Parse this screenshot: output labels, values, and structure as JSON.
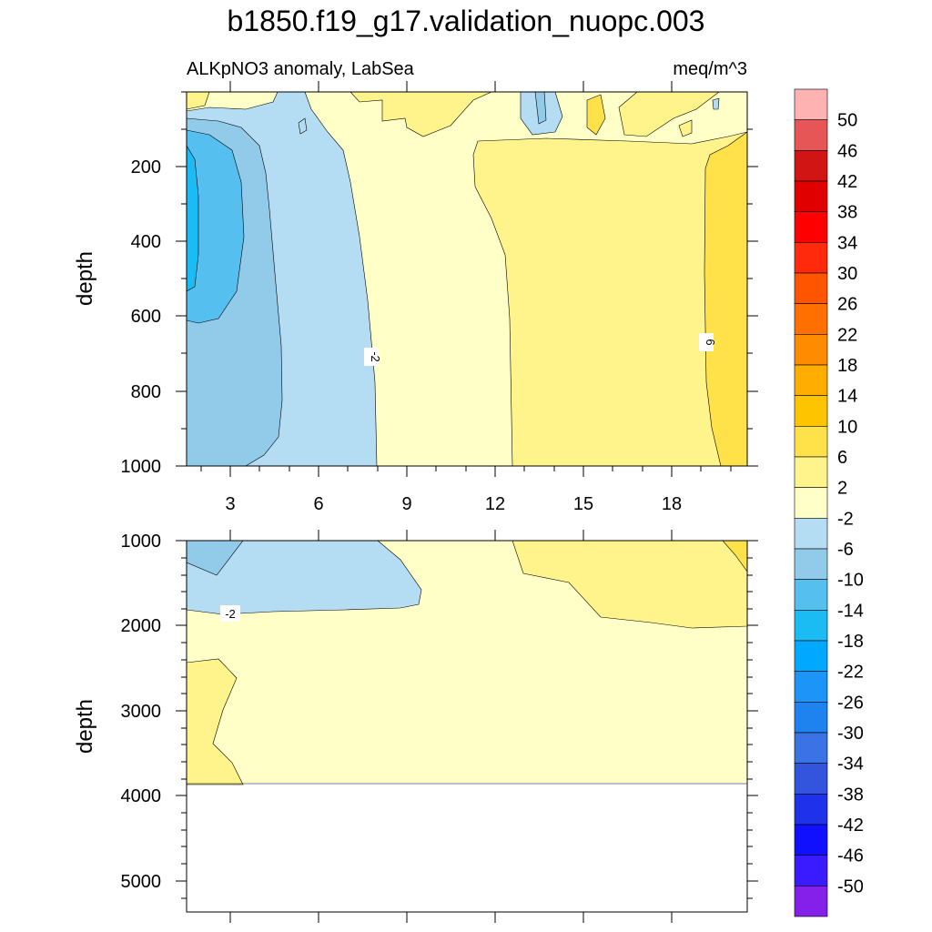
{
  "title": "b1850.f19_g17.validation_nuopc.003",
  "colors": {
    "neg2_to_2": "#ffffc8",
    "2_to_6": "#fff38b",
    "6_to_10": "#ffe14a",
    "m6_to_m2": "#b4dcf2",
    "m10_to_m6": "#91cbe9",
    "m14_to_m10": "#55c0f0",
    "m18_to_m14": "#1bbbf3"
  },
  "chart_data": [
    {
      "type": "contour",
      "name": "upper",
      "subtitle_left": "ALKpNO3 anomaly, LabSea",
      "subtitle_right": "meq/m^3",
      "ylabel": "depth",
      "xlim": [
        1,
        20.9
      ],
      "ylim": [
        1000,
        0
      ],
      "xticks": [
        3,
        6,
        9,
        12,
        15,
        18
      ],
      "xtick_labels": [
        "3",
        "6",
        "9",
        "12",
        "15",
        "18"
      ],
      "yticks": [
        200,
        400,
        600,
        800,
        1000
      ],
      "ytick_labels": [
        "200",
        "400",
        "600",
        "800",
        "1000"
      ],
      "contour_labels": [
        {
          "text": "-2",
          "x": 7.3,
          "depth": 705
        },
        {
          "text": "6",
          "x": 19.3,
          "depth": 668
        }
      ]
    },
    {
      "type": "contour",
      "name": "lower",
      "ylabel": "depth",
      "xlim": [
        1,
        20.9
      ],
      "ylim": [
        5350,
        1000
      ],
      "yticks": [
        1000,
        2000,
        3000,
        4000,
        5000
      ],
      "ytick_labels": [
        "1000",
        "2000",
        "3000",
        "4000",
        "5000"
      ],
      "data_bottom_depth": 3860,
      "contour_labels": [
        {
          "text": "-2",
          "x": 2.5,
          "depth": 1880
        }
      ]
    },
    {
      "type": "colorbar",
      "levels": [
        "50",
        "46",
        "42",
        "38",
        "34",
        "30",
        "26",
        "22",
        "18",
        "14",
        "10",
        "6",
        "2",
        "-2",
        "-6",
        "-10",
        "-14",
        "-18",
        "-22",
        "-26",
        "-30",
        "-34",
        "-38",
        "-42",
        "-46",
        "-50"
      ],
      "box_colors": [
        "#ffb2b2",
        "#e75656",
        "#d11515",
        "#e00000",
        "#ff0000",
        "#ff2a0c",
        "#ff5500",
        "#ff7000",
        "#ff8c00",
        "#ffad00",
        "#ffc400",
        "#ffe14a",
        "#fff38b",
        "#ffffc8",
        "#b4dcf2",
        "#91cbe9",
        "#55c0f0",
        "#1bbbf3",
        "#00a8ff",
        "#1d94f8",
        "#1e82ef",
        "#3a73e6",
        "#3354dc",
        "#1f32eb",
        "#1010ff",
        "#3a1aff",
        "#8420ea"
      ]
    }
  ]
}
